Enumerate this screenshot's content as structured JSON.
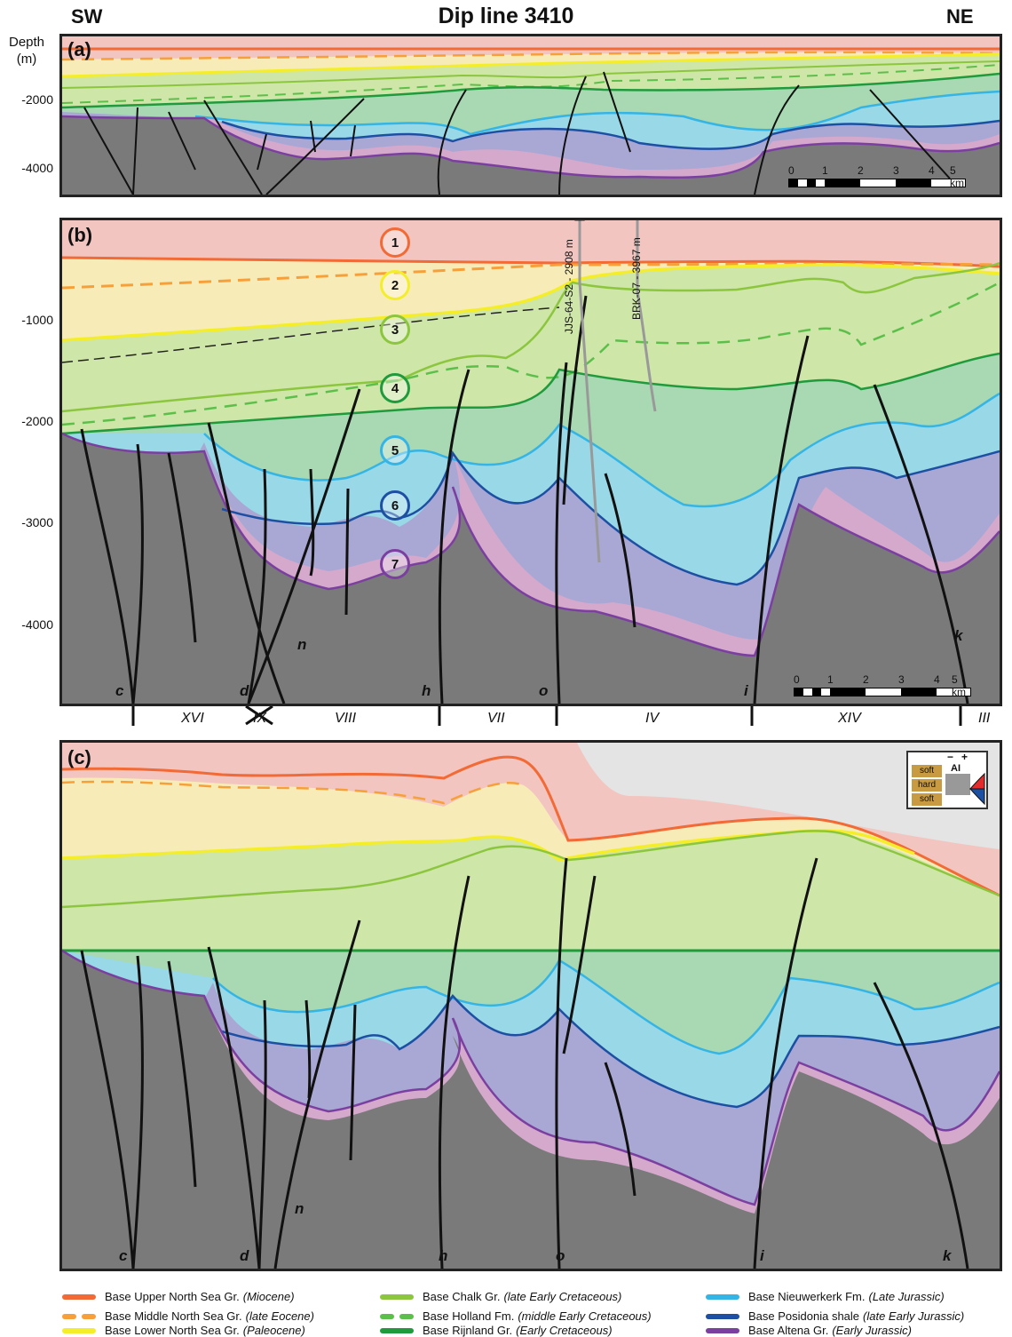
{
  "header": {
    "left": "SW",
    "title": "Dip line 3410",
    "right": "NE"
  },
  "depth_axis": {
    "title_line1": "Depth",
    "title_line2": "(m)"
  },
  "panel_a": {
    "label": "(a)",
    "ticks": [
      "-2000",
      "-4000"
    ]
  },
  "panel_b": {
    "label": "(b)",
    "ticks": [
      "-1000",
      "-2000",
      "-3000",
      "-4000"
    ]
  },
  "panel_c": {
    "label": "(c)"
  },
  "scale": {
    "nums": [
      "0",
      "1",
      "2",
      "3",
      "4",
      "5 km"
    ]
  },
  "horizon_numbers": [
    "1",
    "2",
    "3",
    "4",
    "5",
    "6",
    "7"
  ],
  "wells": [
    {
      "label": "JJS-64-S2 - 2908 m"
    },
    {
      "label": "BRK-07 - 3967 m"
    }
  ],
  "faults": [
    "c",
    "d",
    "n",
    "h",
    "o",
    "i",
    "k"
  ],
  "blocks": [
    "XVI",
    "IX",
    "VIII",
    "VII",
    "IV",
    "XIV",
    "III"
  ],
  "ai_legend": {
    "minus": "−",
    "plus": "+",
    "ai": "AI",
    "soft1": "soft",
    "hard": "hard",
    "soft2": "soft"
  },
  "legend": [
    {
      "name": "Base Upper North Sea Gr.",
      "age": "(Miocene)",
      "color": "#f26a35",
      "dashed": false
    },
    {
      "name": "Base Middle North Sea Gr.",
      "age": "(late Eocene)",
      "color": "#f7a03a",
      "dashed": true
    },
    {
      "name": "Base Lower North Sea Gr.",
      "age": "(Paleocene)",
      "color": "#f4ee2a",
      "dashed": false
    },
    {
      "name": "Base Chalk Gr.",
      "age": "(late Early Cretaceous)",
      "color": "#8cc63f",
      "dashed": false
    },
    {
      "name": "Base Holland Fm.",
      "age": "(middle Early Cretaceous)",
      "color": "#5cbf4a",
      "dashed": true
    },
    {
      "name": "Base Rijnland Gr.",
      "age": "(Early Cretaceous)",
      "color": "#1f9a3c",
      "dashed": false
    },
    {
      "name": "Base Nieuwerkerk Fm.",
      "age": "(Late Jurassic)",
      "color": "#35b4e6",
      "dashed": false
    },
    {
      "name": "Base Posidonia shale",
      "age": "(late Early Jurassic)",
      "color": "#1d4fa3",
      "dashed": false
    },
    {
      "name": "Base Altena Gr.",
      "age": "(Early Jurassic)",
      "color": "#7b3fa0",
      "dashed": false
    }
  ],
  "colors": {
    "miocene_fill": "#f3c5c0",
    "eocene_fill": "#f7ecb8",
    "chalk_fill": "#cfe6a9",
    "rijnland_fill": "#a9d9b2",
    "jurassic_fill": "#99d8e6",
    "posidonia_fill": "#a9a8d4",
    "altena_fill": "#d4a9cc",
    "basement_fill": "#7a7a7a"
  }
}
